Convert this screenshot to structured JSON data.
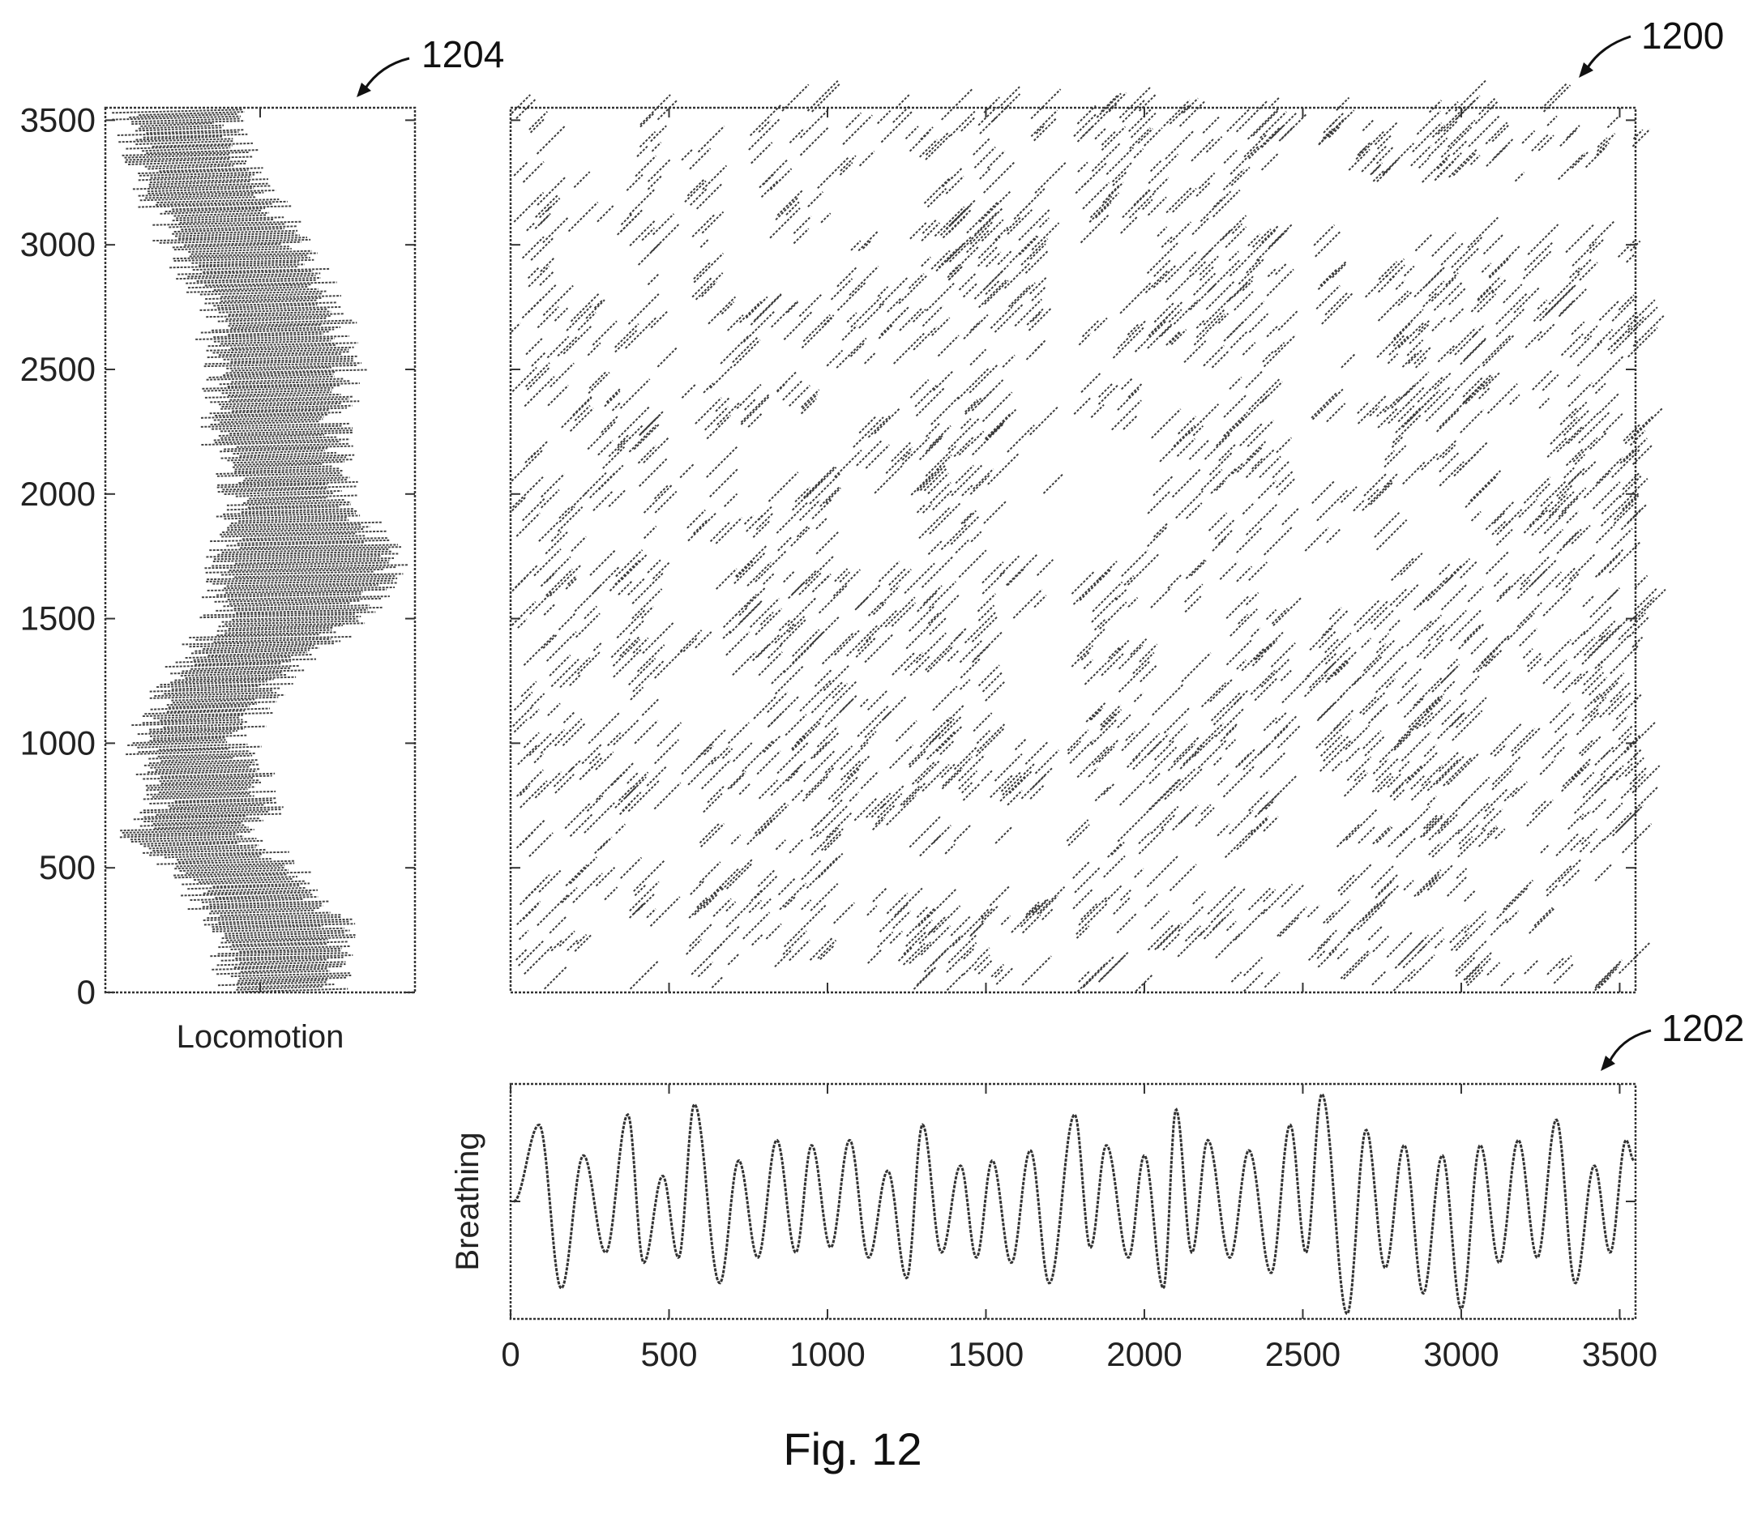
{
  "figure": {
    "caption": "Fig. 12",
    "refs": {
      "matrix": "1200",
      "breathing": "1202",
      "locomotion": "1204"
    }
  },
  "colors": {
    "ink": "#333333",
    "background": "#ffffff"
  },
  "chart_data": [
    {
      "id": "locomotion",
      "type": "line",
      "orientation": "vertical",
      "xlabel": "Locomotion",
      "ylabel": "",
      "ylim": [
        0,
        3550
      ],
      "yticks": [
        "0",
        "500",
        "1000",
        "1500",
        "2000",
        "2500",
        "3000",
        "3500"
      ],
      "xticks": [],
      "envelope_note_y": [
        0,
        250,
        500,
        620,
        750,
        1000,
        1250,
        1500,
        1720,
        2000,
        2250,
        2500,
        2750,
        3000,
        3250,
        3500
      ],
      "envelope_left": [
        0.35,
        0.3,
        0.2,
        0.0,
        0.12,
        0.05,
        0.15,
        0.3,
        0.32,
        0.35,
        0.3,
        0.3,
        0.28,
        0.15,
        0.08,
        0.02
      ],
      "envelope_right": [
        0.82,
        0.82,
        0.68,
        0.5,
        0.6,
        0.5,
        0.62,
        0.88,
        1.0,
        0.82,
        0.8,
        0.85,
        0.8,
        0.68,
        0.55,
        0.45
      ]
    },
    {
      "id": "recurrence",
      "type": "heatmap",
      "xlim": [
        0,
        3550
      ],
      "ylim": [
        0,
        3550
      ],
      "xticks": [
        "500",
        "1000",
        "1500",
        "2000",
        "2500",
        "3000",
        "3500"
      ],
      "yticks": [
        "500",
        "1000",
        "1500",
        "2000",
        "2500",
        "3000",
        "3500"
      ],
      "block_boundaries": [
        0,
        100,
        200,
        370,
        500,
        620,
        750,
        1000,
        1250,
        1500,
        1720,
        2000,
        2250,
        2500,
        2750,
        3000,
        3250,
        3550
      ],
      "empty_bands": [
        500,
        1720,
        2470
      ]
    },
    {
      "id": "breathing",
      "type": "line",
      "xlabel": "",
      "ylabel": "Breathing",
      "xlim": [
        0,
        3550
      ],
      "ylim": [
        -1.15,
        1.15
      ],
      "xticks": [
        "0",
        "500",
        "1000",
        "1500",
        "2000",
        "2500",
        "3000",
        "3500"
      ],
      "peaks_x": [
        90,
        230,
        370,
        480,
        580,
        720,
        840,
        950,
        1070,
        1190,
        1300,
        1420,
        1520,
        1640,
        1780,
        1880,
        2000,
        2100,
        2200,
        2330,
        2460,
        2560,
        2700,
        2820,
        2940,
        3060,
        3180,
        3300,
        3420,
        3520
      ],
      "peaks_y": [
        0.75,
        0.45,
        0.85,
        0.25,
        0.95,
        0.4,
        0.6,
        0.55,
        0.6,
        0.3,
        0.75,
        0.35,
        0.4,
        0.5,
        0.85,
        0.55,
        0.45,
        0.9,
        0.6,
        0.5,
        0.75,
        1.05,
        0.7,
        0.55,
        0.45,
        0.55,
        0.6,
        0.8,
        0.35,
        0.6
      ],
      "troughs_x": [
        160,
        300,
        420,
        530,
        660,
        780,
        900,
        1010,
        1130,
        1250,
        1360,
        1470,
        1580,
        1700,
        1830,
        1950,
        2060,
        2150,
        2270,
        2400,
        2510,
        2640,
        2760,
        2880,
        3000,
        3120,
        3240,
        3360,
        3470
      ],
      "troughs_y": [
        -0.85,
        -0.5,
        -0.6,
        -0.55,
        -0.8,
        -0.55,
        -0.5,
        -0.45,
        -0.55,
        -0.75,
        -0.5,
        -0.55,
        -0.6,
        -0.8,
        -0.45,
        -0.55,
        -0.85,
        -0.5,
        -0.55,
        -0.7,
        -0.5,
        -1.1,
        -0.65,
        -0.9,
        -1.05,
        -0.6,
        -0.55,
        -0.8,
        -0.5
      ]
    }
  ]
}
